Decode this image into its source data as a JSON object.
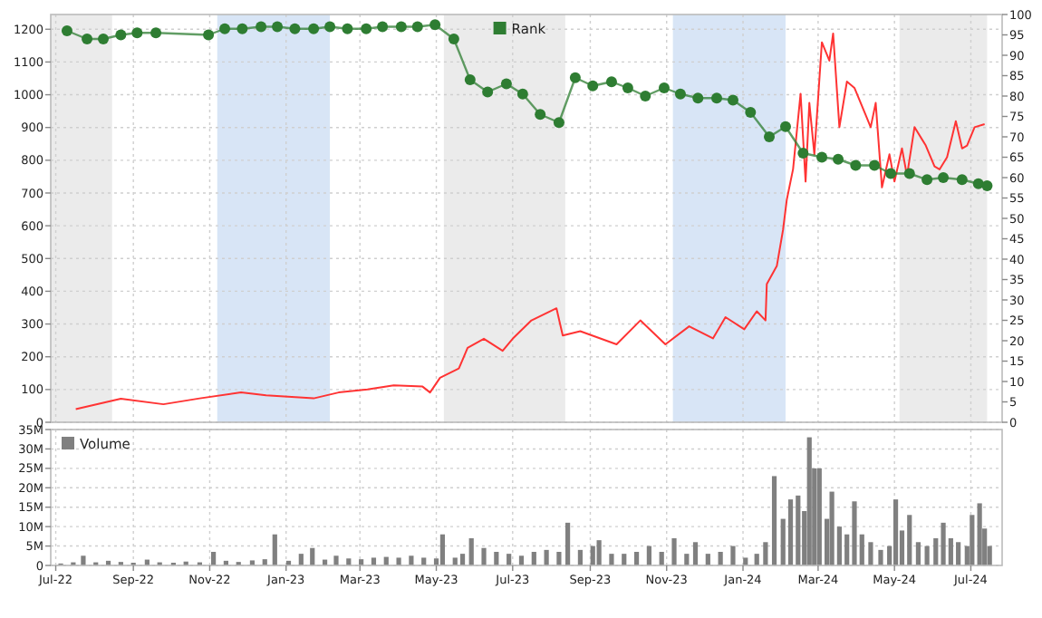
{
  "chart_data": [
    {
      "type": "line",
      "legend": "top",
      "grid": true,
      "tick_labels": "y",
      "line_style": "solid",
      "xlim": [
        "2022-06-27",
        "2024-07-26"
      ],
      "xticks": [
        {
          "value": "2022-07-01",
          "label": null
        },
        {
          "value": "2022-09-01",
          "label": null
        },
        {
          "value": "2022-11-01",
          "label": null
        },
        {
          "value": "2023-01-01",
          "label": null
        },
        {
          "value": "2023-03-01",
          "label": null
        },
        {
          "value": "2023-05-01",
          "label": null
        },
        {
          "value": "2023-07-01",
          "label": null
        },
        {
          "value": "2023-09-01",
          "label": null
        },
        {
          "value": "2023-11-01",
          "label": null
        },
        {
          "value": "2024-01-01",
          "label": null
        },
        {
          "value": "2024-03-01",
          "label": null
        },
        {
          "value": "2024-05-01",
          "label": null
        },
        {
          "value": "2024-07-01",
          "label": null
        }
      ],
      "ylim": [
        0,
        1245
      ],
      "yticks": [
        0,
        100,
        200,
        300,
        400,
        500,
        600,
        700,
        800,
        900,
        1000,
        1100,
        1200
      ],
      "y2lim": [
        0,
        100
      ],
      "y2ticks": [
        0,
        5,
        10,
        15,
        20,
        25,
        30,
        35,
        40,
        45,
        50,
        55,
        60,
        65,
        70,
        75,
        80,
        85,
        90,
        95,
        100
      ],
      "bands": [
        {
          "axis": "x",
          "from": "2022-06-27",
          "to": "2022-08-15",
          "color": "#ebebeb"
        },
        {
          "axis": "x",
          "from": "2022-11-07",
          "to": "2023-02-05",
          "color": "#d8e5f6"
        },
        {
          "axis": "x",
          "from": "2023-05-07",
          "to": "2023-08-12",
          "color": "#ebebeb"
        },
        {
          "axis": "x",
          "from": "2023-11-06",
          "to": "2024-02-04",
          "color": "#d8e5f6"
        },
        {
          "axis": "x",
          "from": "2024-05-05",
          "to": "2024-07-14",
          "color": "#ebebeb"
        }
      ],
      "series": [
        {
          "color": "#ff3333",
          "x": [
            "2022-07-17",
            "2022-08-22",
            "2022-09-25",
            "2022-10-24",
            "2022-11-26",
            "2022-12-16",
            "2023-01-23",
            "2023-02-12",
            "2023-03-07",
            "2023-03-28",
            "2023-04-20",
            "2023-04-26",
            "2023-05-04",
            "2023-05-19",
            "2023-05-26",
            "2023-06-08",
            "2023-06-23",
            "2023-07-01",
            "2023-07-16",
            "2023-08-05",
            "2023-08-10",
            "2023-08-24",
            "2023-09-22",
            "2023-10-11",
            "2023-10-31",
            "2023-11-19",
            "2023-12-08",
            "2023-12-18",
            "2024-01-02",
            "2024-01-12",
            "2024-01-19",
            "2024-01-20",
            "2024-01-28",
            "2024-02-02",
            "2024-02-05",
            "2024-02-10",
            "2024-02-16",
            "2024-02-20",
            "2024-02-23",
            "2024-02-27",
            "2024-03-04",
            "2024-03-10",
            "2024-03-13",
            "2024-03-18",
            "2024-03-24",
            "2024-03-30",
            "2024-04-08",
            "2024-04-12",
            "2024-04-16",
            "2024-04-21",
            "2024-04-27",
            "2024-05-01",
            "2024-05-07",
            "2024-05-11",
            "2024-05-17",
            "2024-05-26",
            "2024-06-02",
            "2024-06-06",
            "2024-06-12",
            "2024-06-19",
            "2024-06-24",
            "2024-06-28",
            "2024-07-04",
            "2024-07-12"
          ],
          "values": [
            40,
            72,
            55,
            73,
            91,
            82,
            73,
            91,
            100,
            113,
            109,
            91,
            136,
            164,
            227,
            255,
            218,
            255,
            311,
            348,
            265,
            278,
            238,
            311,
            238,
            293,
            256,
            321,
            284,
            339,
            311,
            422,
            477,
            588,
            680,
            773,
            1003,
            735,
            975,
            818,
            1160,
            1104,
            1187,
            901,
            1040,
            1021,
            938,
            901,
            975,
            717,
            818,
            735,
            836,
            753,
            901,
            845,
            781,
            772,
            809,
            919,
            836,
            845,
            901,
            910
          ]
        },
        {
          "axis": "y2",
          "name": "Rank",
          "color": "#2e7d32",
          "marker": "circle",
          "x": [
            "2022-07-10",
            "2022-07-26",
            "2022-08-08",
            "2022-08-22",
            "2022-09-04",
            "2022-09-19",
            "2022-10-31",
            "2022-11-13",
            "2022-11-27",
            "2022-12-12",
            "2022-12-25",
            "2023-01-08",
            "2023-01-23",
            "2023-02-05",
            "2023-02-19",
            "2023-03-06",
            "2023-03-19",
            "2023-04-03",
            "2023-04-16",
            "2023-04-30",
            "2023-05-15",
            "2023-05-28",
            "2023-06-11",
            "2023-06-26",
            "2023-07-09",
            "2023-07-23",
            "2023-08-07",
            "2023-08-20",
            "2023-09-03",
            "2023-09-18",
            "2023-10-01",
            "2023-10-15",
            "2023-10-30",
            "2023-11-12",
            "2023-11-26",
            "2023-12-11",
            "2023-12-24",
            "2024-01-07",
            "2024-01-22",
            "2024-02-04",
            "2024-02-18",
            "2024-03-04",
            "2024-03-17",
            "2024-03-31",
            "2024-04-15",
            "2024-04-28",
            "2024-05-13",
            "2024-05-27",
            "2024-06-09",
            "2024-06-24",
            "2024-07-07",
            "2024-07-14"
          ],
          "values": [
            96,
            94,
            94,
            95,
            95.5,
            95.5,
            95,
            96.5,
            96.5,
            97,
            97,
            96.5,
            96.5,
            97,
            96.5,
            96.5,
            97,
            97,
            97,
            97.5,
            94,
            84,
            81,
            83,
            80.5,
            75.5,
            73.5,
            84.5,
            82.5,
            83.5,
            82,
            80,
            82,
            80.5,
            79.5,
            79.5,
            79,
            76,
            70,
            72.5,
            66,
            65,
            64.5,
            63,
            63,
            61,
            61,
            59.5,
            60,
            59.5,
            58.5,
            58
          ]
        }
      ]
    },
    {
      "type": "bar",
      "legend": "top left",
      "grid": true,
      "xlim": [
        "2022-06-27",
        "2024-07-26"
      ],
      "xticks": [
        {
          "value": "2022-07-01",
          "label": "Jul-22"
        },
        {
          "value": "2022-09-01",
          "label": "Sep-22"
        },
        {
          "value": "2022-11-01",
          "label": "Nov-22"
        },
        {
          "value": "2023-01-01",
          "label": "Jan-23"
        },
        {
          "value": "2023-03-01",
          "label": "Mar-23"
        },
        {
          "value": "2023-05-01",
          "label": "May-23"
        },
        {
          "value": "2023-07-01",
          "label": "Jul-23"
        },
        {
          "value": "2023-09-01",
          "label": "Sep-23"
        },
        {
          "value": "2023-11-01",
          "label": "Nov-23"
        },
        {
          "value": "2024-01-01",
          "label": "Jan-24"
        },
        {
          "value": "2024-03-01",
          "label": "Mar-24"
        },
        {
          "value": "2024-05-01",
          "label": "May-24"
        },
        {
          "value": "2024-07-01",
          "label": "Jul-24"
        }
      ],
      "ylim": [
        0,
        35000000
      ],
      "yticks": [
        {
          "value": 0,
          "label": "0"
        },
        {
          "value": 5000000,
          "label": "5M"
        },
        {
          "value": 10000000,
          "label": "10M"
        },
        {
          "value": 15000000,
          "label": "15M"
        },
        {
          "value": 20000000,
          "label": "20M"
        },
        {
          "value": 25000000,
          "label": "25M"
        },
        {
          "value": 30000000,
          "label": "30M"
        },
        {
          "value": 35000000,
          "label": "35M"
        }
      ],
      "series": [
        {
          "name": "Volume",
          "color": "#808080",
          "x": [
            "2022-07-05",
            "2022-07-15",
            "2022-07-23",
            "2022-08-02",
            "2022-08-12",
            "2022-08-22",
            "2022-09-01",
            "2022-09-12",
            "2022-09-22",
            "2022-10-03",
            "2022-10-13",
            "2022-10-24",
            "2022-11-04",
            "2022-11-14",
            "2022-11-24",
            "2022-12-05",
            "2022-12-15",
            "2022-12-23",
            "2023-01-03",
            "2023-01-13",
            "2023-01-22",
            "2023-02-01",
            "2023-02-10",
            "2023-02-20",
            "2023-03-02",
            "2023-03-12",
            "2023-03-22",
            "2023-04-01",
            "2023-04-11",
            "2023-04-21",
            "2023-05-01",
            "2023-05-06",
            "2023-05-16",
            "2023-05-22",
            "2023-05-29",
            "2023-06-08",
            "2023-06-18",
            "2023-06-28",
            "2023-07-08",
            "2023-07-18",
            "2023-07-28",
            "2023-08-07",
            "2023-08-14",
            "2023-08-24",
            "2023-09-03",
            "2023-09-08",
            "2023-09-18",
            "2023-09-28",
            "2023-10-08",
            "2023-10-18",
            "2023-10-28",
            "2023-11-07",
            "2023-11-17",
            "2023-11-24",
            "2023-12-04",
            "2023-12-14",
            "2023-12-24",
            "2024-01-03",
            "2024-01-12",
            "2024-01-19",
            "2024-01-26",
            "2024-02-02",
            "2024-02-08",
            "2024-02-14",
            "2024-02-19",
            "2024-02-23",
            "2024-02-27",
            "2024-03-02",
            "2024-03-08",
            "2024-03-12",
            "2024-03-18",
            "2024-03-24",
            "2024-03-30",
            "2024-04-05",
            "2024-04-12",
            "2024-04-20",
            "2024-04-27",
            "2024-05-02",
            "2024-05-07",
            "2024-05-13",
            "2024-05-20",
            "2024-05-27",
            "2024-06-03",
            "2024-06-09",
            "2024-06-15",
            "2024-06-21",
            "2024-06-28",
            "2024-07-02",
            "2024-07-08",
            "2024-07-12",
            "2024-07-16"
          ],
          "values": [
            500000,
            800000,
            2500000,
            800000,
            1200000,
            900000,
            700000,
            1500000,
            800000,
            700000,
            1000000,
            800000,
            3500000,
            1200000,
            900000,
            1300000,
            1600000,
            8000000,
            1200000,
            3000000,
            4500000,
            1500000,
            2500000,
            1800000,
            1600000,
            2000000,
            2200000,
            2000000,
            2500000,
            2000000,
            1800000,
            8000000,
            2000000,
            3000000,
            7000000,
            4500000,
            3500000,
            3000000,
            2500000,
            3500000,
            4000000,
            3500000,
            11000000,
            4000000,
            5000000,
            6500000,
            3000000,
            3000000,
            3500000,
            5000000,
            3500000,
            7000000,
            3000000,
            6000000,
            3000000,
            3500000,
            5000000,
            2000000,
            3000000,
            6000000,
            23000000,
            12000000,
            17000000,
            18000000,
            14000000,
            33000000,
            25000000,
            25000000,
            12000000,
            19000000,
            10000000,
            8000000,
            16500000,
            8000000,
            6000000,
            4000000,
            5000000,
            17000000,
            9000000,
            13000000,
            6000000,
            5000000,
            7000000,
            11000000,
            7000000,
            6000000,
            5000000,
            13000000,
            16000000,
            9500000,
            5000000
          ]
        }
      ]
    }
  ]
}
